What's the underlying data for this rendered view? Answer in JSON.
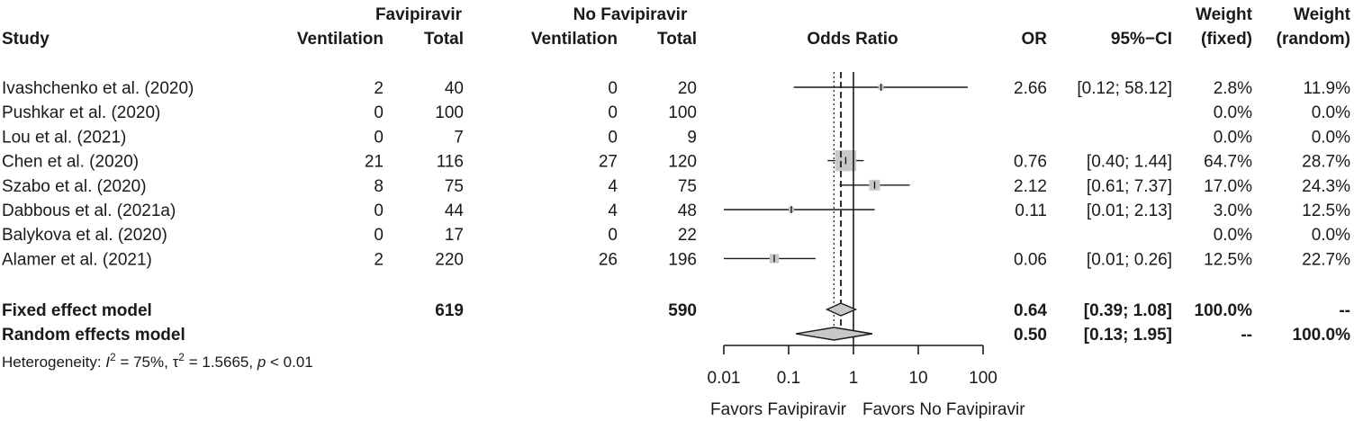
{
  "header": {
    "group1": "Favipiravir",
    "group2": "No Favipiravir",
    "weight1_top": "Weight",
    "weight2_top": "Weight",
    "study": "Study",
    "g1_events": "Ventilation",
    "g1_total": "Total",
    "g2_events": "Ventilation",
    "g2_total": "Total",
    "effect": "Odds Ratio",
    "or": "OR",
    "ci": "95%−CI",
    "weight_fixed": "(fixed)",
    "weight_random": "(random)"
  },
  "heterogeneity": {
    "prefix": "Heterogeneity: ",
    "i_symbol": "I",
    "i_exp": "2",
    "i_value": " = 75%, ",
    "tau_symbol": "τ",
    "tau_exp": "2",
    "tau_value": " = 1.5665, ",
    "p_symbol": "p",
    "p_value": " < 0.01"
  },
  "axis_labels": {
    "left": "Favors Favipiravir",
    "right": "Favors No Favipiravir"
  },
  "colors": {
    "box": "#c8c8c8",
    "diamond": "#c8c8c8",
    "line": "#1a1a1a"
  },
  "chart_data": {
    "type": "forest",
    "scale": "log",
    "xlim": [
      0.01,
      100
    ],
    "ticks": [
      {
        "value": 0.01,
        "label": "0.01"
      },
      {
        "value": 0.1,
        "label": "0.1"
      },
      {
        "value": 1,
        "label": "1"
      },
      {
        "value": 10,
        "label": "10"
      },
      {
        "value": 100,
        "label": "100"
      }
    ],
    "reference_line": 1,
    "fixed_line": 0.64,
    "random_line": 0.5,
    "studies": [
      {
        "name": "Ivashchenko et al. (2020)",
        "e1": "2",
        "n1": "40",
        "e2": "0",
        "n2": "20",
        "or": 2.66,
        "lower": 0.12,
        "upper": 58.12,
        "or_text": "2.66",
        "ci_text": "[0.12; 58.12]",
        "w_fixed": "2.8%",
        "w_random": "11.9%",
        "weight": 2.8
      },
      {
        "name": "Pushkar et al. (2020)",
        "e1": "0",
        "n1": "100",
        "e2": "0",
        "n2": "100",
        "or": null,
        "lower": null,
        "upper": null,
        "or_text": "",
        "ci_text": "",
        "w_fixed": "0.0%",
        "w_random": "0.0%",
        "weight": 0
      },
      {
        "name": "Lou et al. (2021)",
        "e1": "0",
        "n1": "7",
        "e2": "0",
        "n2": "9",
        "or": null,
        "lower": null,
        "upper": null,
        "or_text": "",
        "ci_text": "",
        "w_fixed": "0.0%",
        "w_random": "0.0%",
        "weight": 0
      },
      {
        "name": "Chen et al. (2020)",
        "e1": "21",
        "n1": "116",
        "e2": "27",
        "n2": "120",
        "or": 0.76,
        "lower": 0.4,
        "upper": 1.44,
        "or_text": "0.76",
        "ci_text": "[0.40; 1.44]",
        "w_fixed": "64.7%",
        "w_random": "28.7%",
        "weight": 64.7
      },
      {
        "name": "Szabo et al. (2020)",
        "e1": "8",
        "n1": "75",
        "e2": "4",
        "n2": "75",
        "or": 2.12,
        "lower": 0.61,
        "upper": 7.37,
        "or_text": "2.12",
        "ci_text": "[0.61; 7.37]",
        "w_fixed": "17.0%",
        "w_random": "24.3%",
        "weight": 17.0
      },
      {
        "name": "Dabbous et al. (2021a)",
        "e1": "0",
        "n1": "44",
        "e2": "4",
        "n2": "48",
        "or": 0.11,
        "lower": 0.01,
        "upper": 2.13,
        "or_text": "0.11",
        "ci_text": "[0.01; 2.13]",
        "w_fixed": "3.0%",
        "w_random": "12.5%",
        "weight": 3.0
      },
      {
        "name": "Balykova et al. (2020)",
        "e1": "0",
        "n1": "17",
        "e2": "0",
        "n2": "22",
        "or": null,
        "lower": null,
        "upper": null,
        "or_text": "",
        "ci_text": "",
        "w_fixed": "0.0%",
        "w_random": "0.0%",
        "weight": 0
      },
      {
        "name": "Alamer et al. (2021)",
        "e1": "2",
        "n1": "220",
        "e2": "26",
        "n2": "196",
        "or": 0.06,
        "lower": 0.01,
        "upper": 0.26,
        "or_text": "0.06",
        "ci_text": "[0.01; 0.26]",
        "w_fixed": "12.5%",
        "w_random": "22.7%",
        "weight": 12.5
      }
    ],
    "pooled": [
      {
        "name": "Fixed effect model",
        "n1": "619",
        "n2": "590",
        "or": 0.64,
        "lower": 0.39,
        "upper": 1.08,
        "or_text": "0.64",
        "ci_text": "[0.39; 1.08]",
        "w_fixed": "100.0%",
        "w_random": "--"
      },
      {
        "name": "Random effects model",
        "n1": "",
        "n2": "",
        "or": 0.5,
        "lower": 0.13,
        "upper": 1.95,
        "or_text": "0.50",
        "ci_text": "[0.13; 1.95]",
        "w_fixed": "--",
        "w_random": "100.0%"
      }
    ]
  }
}
